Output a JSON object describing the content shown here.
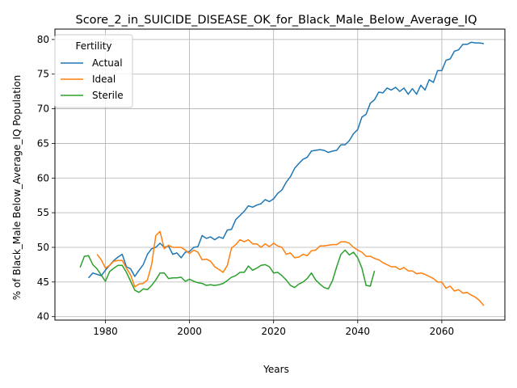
{
  "chart_data": {
    "type": "line",
    "title": "Score_2_in_SUICIDE_DISEASE_OK_for_Black_Male_Below_Average_IQ",
    "xlabel": "Years",
    "ylabel": "% of Black_Male Below_Average_IQ Population",
    "xlim": [
      1968,
      2075
    ],
    "ylim": [
      39.5,
      81.5
    ],
    "xticks": [
      1980,
      2000,
      2020,
      2040,
      2060
    ],
    "yticks": [
      40,
      45,
      50,
      55,
      60,
      65,
      70,
      75,
      80
    ],
    "grid": true,
    "legend": {
      "title": "Fertility",
      "placement": "top-left"
    },
    "series": [
      {
        "name": "Actual",
        "color": "#1f77b4",
        "x": [
          1976,
          1977,
          1978,
          1979,
          1980,
          1981,
          1982,
          1983,
          1984,
          1985,
          1986,
          1987,
          1988,
          1989,
          1990,
          1991,
          1992,
          1993,
          1994,
          1995,
          1996,
          1997,
          1998,
          1999,
          2000,
          2001,
          2002,
          2003,
          2004,
          2005,
          2006,
          2007,
          2008,
          2009,
          2010,
          2011,
          2012,
          2013,
          2014,
          2015,
          2016,
          2017,
          2018,
          2019,
          2020,
          2021,
          2022,
          2023,
          2024,
          2025,
          2026,
          2027,
          2028,
          2029,
          2030,
          2031,
          2032,
          2033,
          2034,
          2035,
          2036,
          2037,
          2038,
          2039,
          2040,
          2041,
          2042,
          2043,
          2044,
          2045,
          2046,
          2047,
          2048,
          2049,
          2050,
          2051,
          2052,
          2053,
          2054,
          2055,
          2056,
          2057,
          2058,
          2059,
          2060,
          2061,
          2062,
          2063,
          2064,
          2065,
          2066,
          2067,
          2068,
          2069,
          2070
        ],
        "y": [
          45.6,
          46.3,
          46.1,
          45.9,
          46.7,
          47.4,
          48.1,
          48.6,
          49.0,
          47.2,
          46.9,
          45.8,
          46.7,
          47.5,
          49.0,
          49.8,
          50.0,
          50.6,
          50.0,
          50.2,
          49.0,
          49.2,
          48.5,
          49.3,
          49.4,
          50.0,
          50.1,
          51.7,
          51.3,
          51.5,
          51.1,
          51.5,
          51.3,
          52.5,
          52.6,
          54.0,
          54.6,
          55.2,
          56.0,
          55.8,
          56.1,
          56.3,
          56.9,
          56.6,
          57.0,
          57.8,
          58.3,
          59.4,
          60.2,
          61.4,
          62.1,
          62.7,
          63.0,
          63.9,
          64.0,
          64.1,
          64.0,
          63.7,
          63.9,
          64.0,
          64.8,
          64.8,
          65.4,
          66.4,
          67.0,
          68.8,
          69.2,
          70.8,
          71.3,
          72.4,
          72.3,
          73.0,
          72.7,
          73.1,
          72.5,
          73.0,
          72.1,
          72.9,
          72.1,
          73.4,
          72.7,
          74.2,
          73.8,
          75.5,
          75.5,
          77.0,
          77.2,
          78.3,
          78.5,
          79.3,
          79.3,
          79.6,
          79.5,
          79.5,
          79.4
        ]
      },
      {
        "name": "Ideal",
        "color": "#ff7f0e",
        "x": [
          1978,
          1979,
          1980,
          1981,
          1982,
          1983,
          1984,
          1985,
          1986,
          1987,
          1988,
          1989,
          1990,
          1991,
          1992,
          1993,
          1994,
          1995,
          1996,
          1997,
          1998,
          1999,
          2000,
          2001,
          2002,
          2003,
          2004,
          2005,
          2006,
          2007,
          2008,
          2009,
          2010,
          2011,
          2012,
          2013,
          2014,
          2015,
          2016,
          2017,
          2018,
          2019,
          2020,
          2021,
          2022,
          2023,
          2024,
          2025,
          2026,
          2027,
          2028,
          2029,
          2030,
          2031,
          2032,
          2033,
          2034,
          2035,
          2036,
          2037,
          2038,
          2039,
          2040,
          2041,
          2042,
          2043,
          2044,
          2045,
          2046,
          2047,
          2048,
          2049,
          2050,
          2051,
          2052,
          2053,
          2054,
          2055,
          2056,
          2057,
          2058,
          2059,
          2060,
          2061,
          2062,
          2063,
          2064,
          2065,
          2066,
          2067,
          2068,
          2069,
          2070
        ],
        "y": [
          49.0,
          48.2,
          47.0,
          47.4,
          48.0,
          48.1,
          48.1,
          47.0,
          46.0,
          44.3,
          44.7,
          44.8,
          45.3,
          47.5,
          51.7,
          52.3,
          49.8,
          50.3,
          50.0,
          50.0,
          50.0,
          49.6,
          49.1,
          49.6,
          49.3,
          48.2,
          48.3,
          48.0,
          47.2,
          46.8,
          46.4,
          47.4,
          49.9,
          50.4,
          51.1,
          50.8,
          51.1,
          50.5,
          50.5,
          50.0,
          50.5,
          50.1,
          50.6,
          50.2,
          50.0,
          49.0,
          49.2,
          48.5,
          48.6,
          49.0,
          48.8,
          49.5,
          49.6,
          50.2,
          50.2,
          50.3,
          50.4,
          50.4,
          50.8,
          50.8,
          50.6,
          50.0,
          49.6,
          49.3,
          48.7,
          48.7,
          48.4,
          48.2,
          47.8,
          47.5,
          47.2,
          47.2,
          46.8,
          47.1,
          46.6,
          46.6,
          46.2,
          46.3,
          46.1,
          45.8,
          45.5,
          45.0,
          45.0,
          44.1,
          44.4,
          43.7,
          43.9,
          43.4,
          43.5,
          43.1,
          42.8,
          42.3,
          41.6
        ]
      },
      {
        "name": "Sterile",
        "color": "#2ca02c",
        "x": [
          1974,
          1975,
          1976,
          1977,
          1978,
          1979,
          1980,
          1981,
          1982,
          1983,
          1984,
          1985,
          1986,
          1987,
          1988,
          1989,
          1990,
          1991,
          1992,
          1993,
          1994,
          1995,
          1996,
          1997,
          1998,
          1999,
          2000,
          2001,
          2002,
          2003,
          2004,
          2005,
          2006,
          2007,
          2008,
          2009,
          2010,
          2011,
          2012,
          2013,
          2014,
          2015,
          2016,
          2017,
          2018,
          2019,
          2020,
          2021,
          2022,
          2023,
          2024,
          2025,
          2026,
          2027,
          2028,
          2029,
          2030,
          2031,
          2032,
          2033,
          2034,
          2035,
          2036,
          2037,
          2038,
          2039,
          2040,
          2041,
          2042,
          2043,
          2044
        ],
        "y": [
          47.1,
          48.7,
          48.8,
          47.5,
          46.9,
          46.0,
          45.1,
          46.5,
          47.0,
          47.4,
          47.4,
          46.4,
          45.1,
          43.8,
          43.5,
          44.0,
          43.9,
          44.5,
          45.3,
          46.3,
          46.3,
          45.5,
          45.6,
          45.6,
          45.7,
          45.1,
          45.4,
          45.1,
          44.9,
          44.8,
          44.5,
          44.6,
          44.5,
          44.6,
          44.8,
          45.2,
          45.7,
          45.9,
          46.4,
          46.4,
          47.3,
          46.7,
          47.0,
          47.4,
          47.5,
          47.2,
          46.3,
          46.4,
          45.9,
          45.3,
          44.5,
          44.2,
          44.7,
          45.0,
          45.5,
          46.3,
          45.3,
          44.7,
          44.2,
          44.0,
          45.2,
          47.2,
          49.0,
          49.6,
          48.9,
          49.3,
          48.5,
          47.0,
          44.5,
          44.4,
          46.6
        ]
      }
    ]
  }
}
